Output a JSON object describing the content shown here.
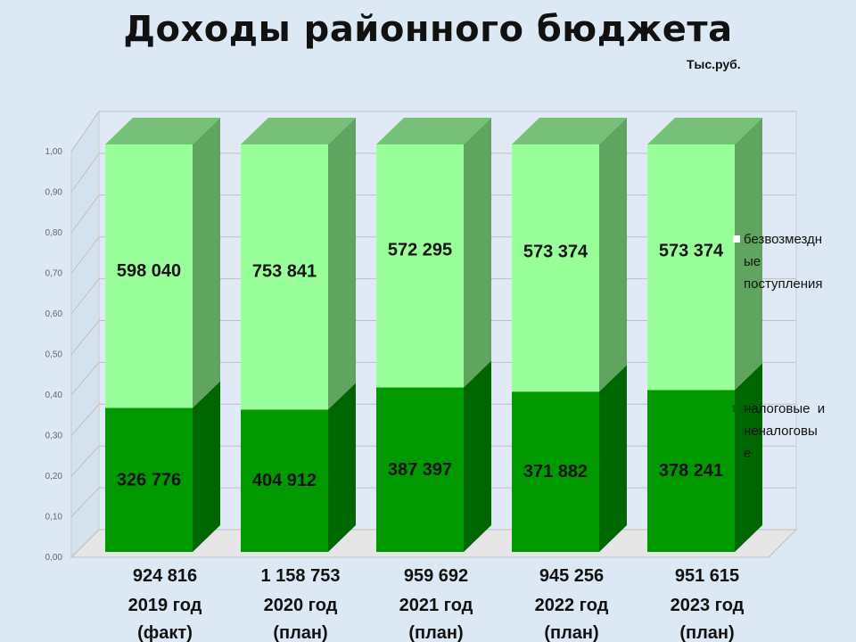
{
  "title": "Доходы районного бюджета",
  "unit": "Тыс.руб.",
  "chart_data": {
    "type": "bar",
    "stacked": true,
    "normalized": true,
    "three_d": true,
    "title": "Доходы районного бюджета",
    "unit": "Тыс.руб.",
    "categories": [
      "2019 год (факт)",
      "2020 год (план)",
      "2021 год (план)",
      "2022 год (план)",
      "2023 год (план)"
    ],
    "category_lines": [
      [
        "2019 год",
        "(факт)"
      ],
      [
        "2020 год",
        "(план)"
      ],
      [
        "2021 год",
        "(план)"
      ],
      [
        "2022 год",
        "(план)"
      ],
      [
        "2023 год",
        "(план)"
      ]
    ],
    "totals": [
      "924 816",
      "1 158 753",
      "959 692",
      "945 256",
      "951 615"
    ],
    "series": [
      {
        "name": "налоговые и неналоговые",
        "legend_lines": [
          "налоговые  и",
          "неналоговы",
          "е"
        ],
        "values": [
          326776,
          404912,
          387397,
          371882,
          378241
        ],
        "labels": [
          "326 776",
          "404 912",
          "387 397",
          "371 882",
          "378 241"
        ],
        "color": "#009900"
      },
      {
        "name": "безвозмездные поступления",
        "legend_lines": [
          "безвозмездн",
          "ые",
          "поступления"
        ],
        "values": [
          598040,
          753841,
          572295,
          573374,
          573374
        ],
        "labels": [
          "598 040",
          "753 841",
          "572 295",
          "573 374",
          "573 374"
        ],
        "color": "#99ff99"
      }
    ],
    "yticks": [
      "0,00",
      "0,10",
      "0,20",
      "0,30",
      "0,40",
      "0,50",
      "0,60",
      "0,70",
      "0,80",
      "0,90",
      "1,00"
    ],
    "ylim": [
      0,
      1
    ],
    "grid": true,
    "legend_position": "right"
  }
}
